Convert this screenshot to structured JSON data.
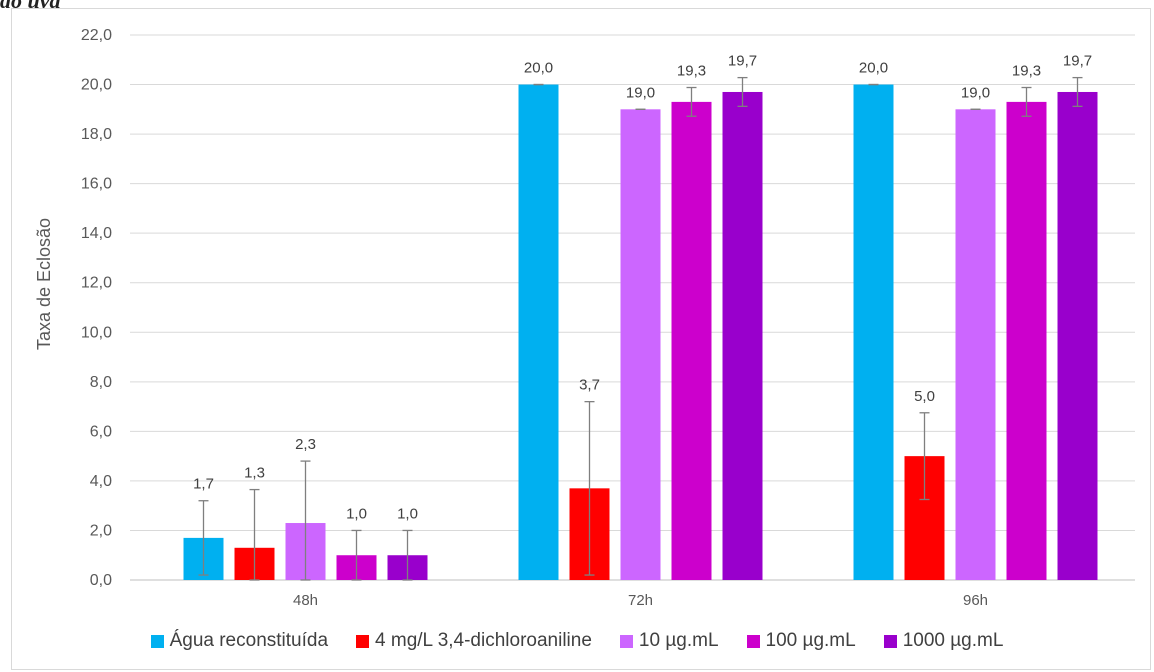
{
  "clipped_heading": "do uva",
  "chart_data": {
    "type": "bar",
    "categories": [
      "48h",
      "72h",
      "96h"
    ],
    "ylabel": "Taxa de Eclosão",
    "xlabel": "",
    "ylim": [
      0,
      22
    ],
    "ytick_step": 2,
    "grid": true,
    "legend_position": "bottom",
    "series": [
      {
        "name": "Água reconstituída",
        "color": "#00b0f0",
        "values": [
          1.7,
          20.0,
          20.0
        ],
        "errors": [
          1.5,
          0.0,
          0.0
        ],
        "labels": [
          "1,7",
          "20,0",
          "20,0"
        ]
      },
      {
        "name": "4 mg/L 3,4-dichloroaniline",
        "color": "#ff0000",
        "values": [
          1.3,
          3.7,
          5.0
        ],
        "errors": [
          2.35,
          3.5,
          1.75
        ],
        "labels": [
          "1,3",
          "3,7",
          "5,0"
        ]
      },
      {
        "name": "10 µg.mL",
        "color": "#cc66ff",
        "values": [
          2.3,
          19.0,
          19.0
        ],
        "errors": [
          2.5,
          0.0,
          0.0
        ],
        "labels": [
          "2,3",
          "19,0",
          "19,0"
        ]
      },
      {
        "name": "100 µg.mL",
        "color": "#cc00cc",
        "values": [
          1.0,
          19.3,
          19.3
        ],
        "errors": [
          1.0,
          0.58,
          0.58
        ],
        "labels": [
          "1,0",
          "19,3",
          "19,3"
        ]
      },
      {
        "name": "1000 µg.mL",
        "color": "#9900cc",
        "values": [
          1.0,
          19.7,
          19.7
        ],
        "errors": [
          1.0,
          0.58,
          0.58
        ],
        "labels": [
          "1,0",
          "19,7",
          "19,7"
        ]
      }
    ],
    "yticks": [
      "0,0",
      "2,0",
      "4,0",
      "6,0",
      "8,0",
      "10,0",
      "12,0",
      "14,0",
      "16,0",
      "18,0",
      "20,0",
      "22,0"
    ]
  }
}
